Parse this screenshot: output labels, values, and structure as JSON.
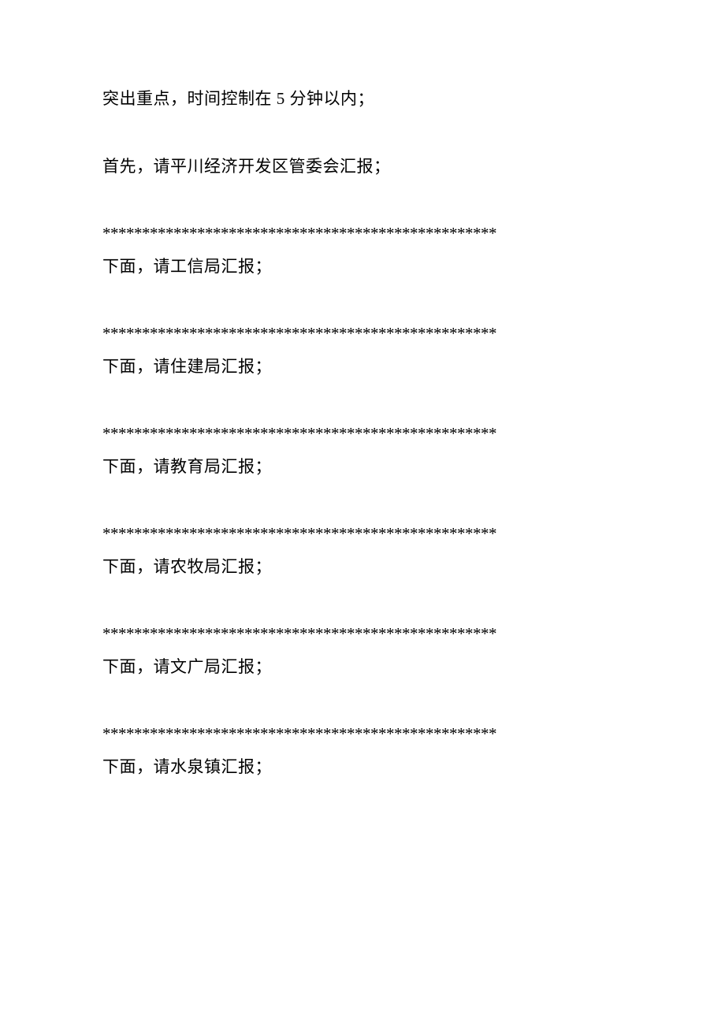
{
  "document": {
    "font_family": "SimSun",
    "font_size_pt": 16,
    "text_color": "#000000",
    "background_color": "#ffffff",
    "intro_line": "突出重点，时间控制在 5 分钟以内；",
    "first_line": "首先，请平川经济开发区管委会汇报；",
    "divider": "**************************************************",
    "sections": [
      {
        "text": "下面，请工信局汇报；"
      },
      {
        "text": "下面，请住建局汇报；"
      },
      {
        "text": "下面，请教育局汇报；"
      },
      {
        "text": "下面，请农牧局汇报；"
      },
      {
        "text": "下面，请文广局汇报；"
      },
      {
        "text": "下面，请水泉镇汇报；"
      }
    ]
  }
}
